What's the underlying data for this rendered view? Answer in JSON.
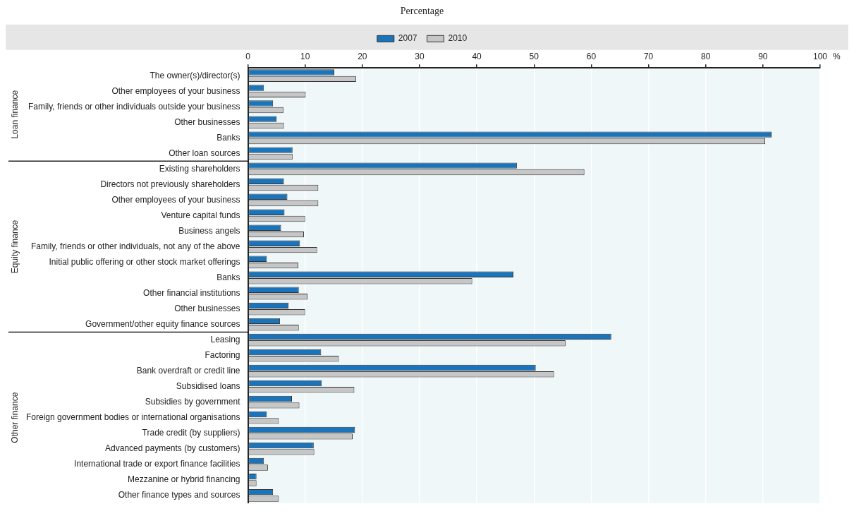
{
  "chart_data": {
    "type": "bar",
    "orientation": "horizontal",
    "subtitle": "Percentage",
    "xlabel": "%",
    "categories": [
      "The owner(s)/director(s)",
      "Other employees of your business",
      "Family, friends or other individuals outside your business",
      "Other businesses",
      "Banks",
      "Other loan sources",
      "Existing shareholders",
      "Directors not previously shareholders",
      "Other employees of your business",
      "Venture capital funds",
      "Business angels",
      "Family, friends or other individuals, not any of the above",
      "Initial public offering or other stock market offerings",
      "Banks",
      "Other financial institutions",
      "Other businesses",
      "Government/other equity finance sources",
      "Leasing",
      "Factoring",
      "Bank overdraft or credit line",
      "Subsidised loans",
      "Subsidies by government",
      "Foreign government bodies or international organisations",
      "Trade credit (by suppliers)",
      "Advanced payments (by customers)",
      "International trade or export finance facilities",
      "Mezzanine or hybrid financing",
      "Other finance types and sources"
    ],
    "series": [
      {
        "name": "2007",
        "color": "#1a74bb",
        "values": [
          15.1,
          2.8,
          4.4,
          5.0,
          91.5,
          7.8,
          47.0,
          6.3,
          6.9,
          6.4,
          5.8,
          9.1,
          3.3,
          46.4,
          8.9,
          7.1,
          5.6,
          63.5,
          12.8,
          50.3,
          12.9,
          7.7,
          3.3,
          18.7,
          11.5,
          2.8,
          1.5,
          4.4
        ]
      },
      {
        "name": "2010",
        "color": "#c6c6c6",
        "values": [
          18.9,
          10.1,
          6.2,
          6.3,
          90.4,
          7.8,
          58.8,
          12.3,
          12.3,
          10.0,
          9.8,
          12.1,
          8.8,
          39.2,
          10.4,
          10.0,
          8.9,
          55.5,
          15.9,
          53.5,
          18.6,
          9.0,
          5.4,
          18.3,
          11.6,
          3.5,
          1.5,
          5.4
        ]
      }
    ],
    "xlim": [
      0,
      100
    ],
    "xticks": [
      0,
      10,
      20,
      30,
      40,
      50,
      60,
      70,
      80,
      90,
      100
    ],
    "grid": "x",
    "legend": "top",
    "annotations": [
      "Loan finance",
      "Equity finance",
      "Other finance"
    ]
  }
}
